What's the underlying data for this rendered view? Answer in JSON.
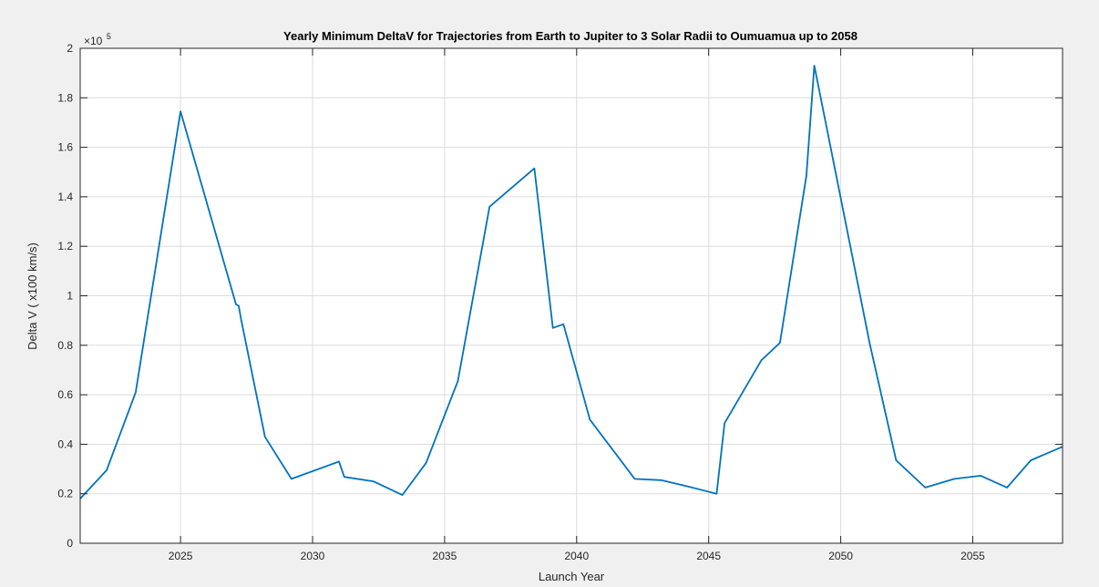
{
  "chart_data": {
    "type": "line",
    "title": "Yearly Minimum DeltaV for Trajectories from Earth to Jupiter to 3 Solar Radii to Oumuamua up to 2058",
    "xlabel": "Launch Year",
    "ylabel": "Delta V ( x100 km/s)",
    "y_exponent_label": "×10",
    "y_exponent_power": "5",
    "xlim": [
      2021.2,
      2058.4
    ],
    "ylim": [
      0,
      200000
    ],
    "x_ticks": [
      2025,
      2030,
      2035,
      2040,
      2045,
      2050,
      2055
    ],
    "x_tick_labels": [
      "2025",
      "2030",
      "2035",
      "2040",
      "2045",
      "2050",
      "2055"
    ],
    "y_ticks": [
      0,
      20000,
      40000,
      60000,
      80000,
      100000,
      120000,
      140000,
      160000,
      180000,
      200000
    ],
    "y_tick_labels": [
      "0",
      "0.2",
      "0.4",
      "0.6",
      "0.8",
      "1",
      "1.2",
      "1.4",
      "1.6",
      "1.8",
      "2"
    ],
    "grid": true,
    "color": "#0072bd",
    "series": [
      {
        "x": [
          2021.2,
          2022.2,
          2023.3,
          2025.0,
          2027.1,
          2027.2,
          2027.3,
          2028.2,
          2029.2,
          2031.0,
          2031.2,
          2032.3,
          2033.4,
          2034.3,
          2035.5,
          2036.7,
          2038.4,
          2039.1,
          2039.5,
          2040.5,
          2042.2,
          2043.2,
          2044.2,
          2045.3,
          2045.6,
          2047.0,
          2047.7,
          2048.7,
          2049.0,
          2051.1,
          2052.1,
          2053.2,
          2054.3,
          2055.3,
          2056.3,
          2057.2,
          2058.4
        ],
        "y": [
          18000,
          29500,
          61000,
          174500,
          96500,
          96000,
          90000,
          43000,
          26000,
          33000,
          26800,
          25000,
          19500,
          32500,
          65500,
          136000,
          151500,
          87000,
          88500,
          50000,
          26000,
          25500,
          23000,
          20000,
          48500,
          74000,
          81000,
          148500,
          193000,
          80500,
          33500,
          22500,
          26000,
          27300,
          22500,
          33500,
          39000
        ]
      }
    ]
  }
}
